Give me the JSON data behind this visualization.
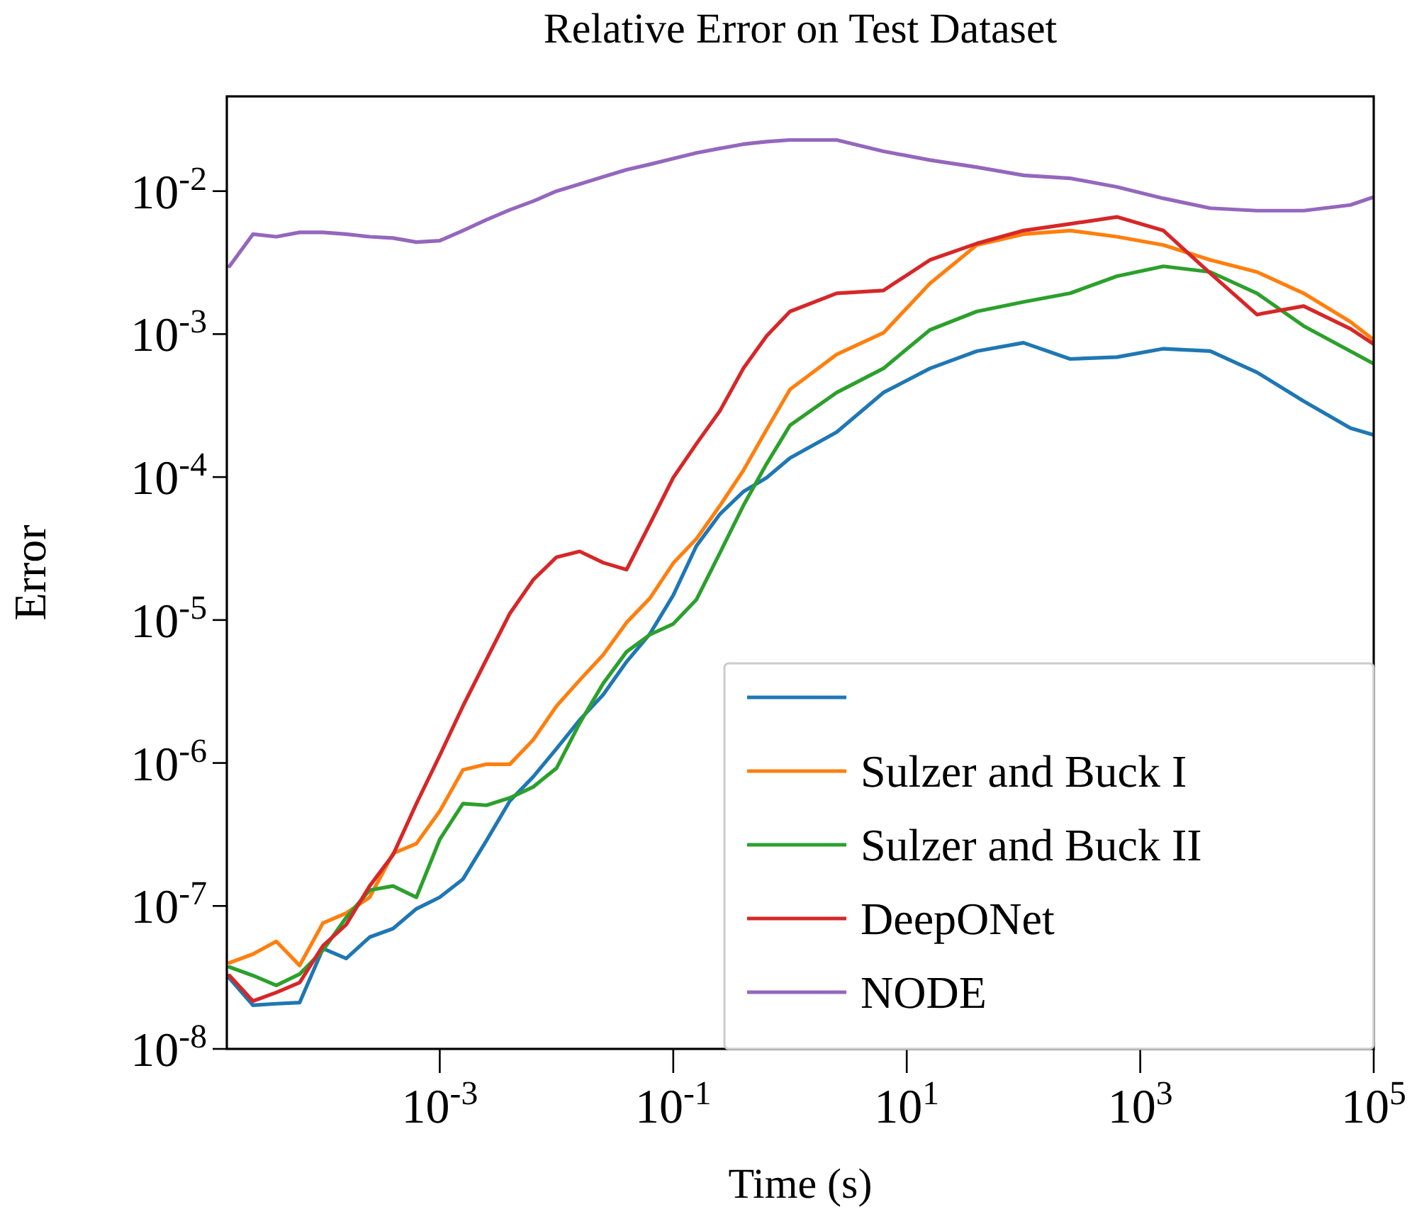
{
  "chart_data": {
    "type": "line",
    "title": "Relative Error on Test Dataset",
    "xlabel": "Time (s)",
    "ylabel": "Error",
    "log": "xy",
    "grid": false,
    "legend": "bottom right",
    "marker": "none",
    "line_style": "solid",
    "xlim": [
      1.5e-05,
      100000
    ],
    "ylim": [
      1e-08,
      0.046
    ],
    "xticks": [
      {
        "value": 0.001,
        "label": "10$^{-3}$"
      },
      {
        "value": 0.1,
        "label": "10$^{-1}$"
      },
      {
        "value": 10,
        "label": "10$^{1}$"
      },
      {
        "value": 1000,
        "label": "10$^{3}$"
      },
      {
        "value": 100000,
        "label": "10$^{5}$"
      }
    ],
    "yticks": [
      {
        "value": 1e-08,
        "label": "10$^{-8}$"
      },
      {
        "value": 1e-07,
        "label": "10$^{-7}$"
      },
      {
        "value": 1e-06,
        "label": "10$^{-6}$"
      },
      {
        "value": 1e-05,
        "label": "10$^{-5}$"
      },
      {
        "value": 0.0001,
        "label": "10$^{-4}$"
      },
      {
        "value": 0.001,
        "label": "10$^{-3}$"
      },
      {
        "value": 0.01,
        "label": "10$^{-2}$"
      }
    ],
    "x": [
      1.58e-05,
      2.51e-05,
      3.98e-05,
      6.31e-05,
      0.0001,
      0.000158,
      0.000251,
      0.000398,
      0.000631,
      0.001,
      0.00158,
      0.00251,
      0.00398,
      0.00631,
      0.01,
      0.0158,
      0.0251,
      0.0398,
      0.0631,
      0.1,
      0.158,
      0.251,
      0.398,
      0.631,
      1,
      2.51,
      6.31,
      15.8,
      39.8,
      100,
      251,
      631,
      1580,
      3980,
      10000,
      25100,
      63100,
      100000
    ],
    "series": [
      {
        "color": "#1f77b4",
        "values": [
          3.12e-08,
          2.02e-08,
          2.07e-08,
          2.11e-08,
          5.04e-08,
          4.29e-08,
          6.05e-08,
          6.94e-08,
          9.55e-08,
          1.15e-07,
          1.54e-07,
          2.86e-07,
          5.42e-07,
          8e-07,
          1.26e-06,
          2e-06,
          3e-06,
          5.1e-06,
          8e-06,
          1.49e-05,
          3.3e-05,
          5.5e-05,
          7.9e-05,
          9.9e-05,
          0.000136,
          0.000206,
          0.00039,
          0.000575,
          0.00076,
          0.00087,
          0.00067,
          0.00069,
          0.00079,
          0.00076,
          0.00054,
          0.00034,
          0.00022,
          0.000197
        ]
      },
      {
        "name": "Sulzer and Buck I",
        "color": "#ff7f0e",
        "values": [
          4e-08,
          4.6e-08,
          5.65e-08,
          3.83e-08,
          7.6e-08,
          8.9e-08,
          1.15e-07,
          2.33e-07,
          2.73e-07,
          4.6e-07,
          8.95e-07,
          9.8e-07,
          9.8e-07,
          1.45e-06,
          2.5e-06,
          3.8e-06,
          5.7e-06,
          9.6e-06,
          1.42e-05,
          2.5e-05,
          3.7e-05,
          6.3e-05,
          0.000111,
          0.000215,
          0.00041,
          0.00072,
          0.00102,
          0.00226,
          0.0042,
          0.005,
          0.0053,
          0.0048,
          0.0042,
          0.0033,
          0.00272,
          0.00193,
          0.00122,
          0.00091
        ]
      },
      {
        "name": "Sulzer and Buck II",
        "color": "#2ca02c",
        "values": [
          3.74e-08,
          3.26e-08,
          2.78e-08,
          3.34e-08,
          4.9e-08,
          8.3e-08,
          1.29e-07,
          1.38e-07,
          1.15e-07,
          2.92e-07,
          5.2e-07,
          5.06e-07,
          5.7e-07,
          6.8e-07,
          9.2e-07,
          1.9e-06,
          3.6e-06,
          6e-06,
          7.9e-06,
          9.4e-06,
          1.39e-05,
          2.95e-05,
          6.3e-05,
          0.000124,
          0.00023,
          0.00039,
          0.000575,
          0.00107,
          0.00144,
          0.00168,
          0.00193,
          0.00254,
          0.00298,
          0.00272,
          0.00193,
          0.00114,
          0.00076,
          0.00062
        ]
      },
      {
        "name": "DeepONet",
        "color": "#d62728",
        "values": [
          3.26e-08,
          2.16e-08,
          2.48e-08,
          2.91e-08,
          5.27e-08,
          7.4e-08,
          1.38e-07,
          2.28e-07,
          5.2e-07,
          1.13e-06,
          2.5e-06,
          5.3e-06,
          1.11e-05,
          1.91e-05,
          2.75e-05,
          3.02e-05,
          2.52e-05,
          2.25e-05,
          4.7e-05,
          9.9e-05,
          0.000171,
          0.00029,
          0.000575,
          0.00097,
          0.00144,
          0.00193,
          0.00202,
          0.0033,
          0.0043,
          0.0053,
          0.0059,
          0.0066,
          0.0053,
          0.00266,
          0.00137,
          0.00157,
          0.00109,
          0.00085
        ]
      },
      {
        "name": "NODE",
        "color": "#9467bd",
        "values": [
          0.00298,
          0.005,
          0.0048,
          0.00515,
          0.00515,
          0.005,
          0.0048,
          0.0047,
          0.0044,
          0.0045,
          0.0053,
          0.0063,
          0.0074,
          0.0085,
          0.01,
          0.0112,
          0.0126,
          0.0141,
          0.0154,
          0.0169,
          0.0185,
          0.0199,
          0.0213,
          0.0222,
          0.0228,
          0.0228,
          0.019,
          0.0165,
          0.0147,
          0.0129,
          0.0123,
          0.0107,
          0.0089,
          0.0076,
          0.0073,
          0.0073,
          0.008,
          0.0091
        ]
      }
    ]
  }
}
